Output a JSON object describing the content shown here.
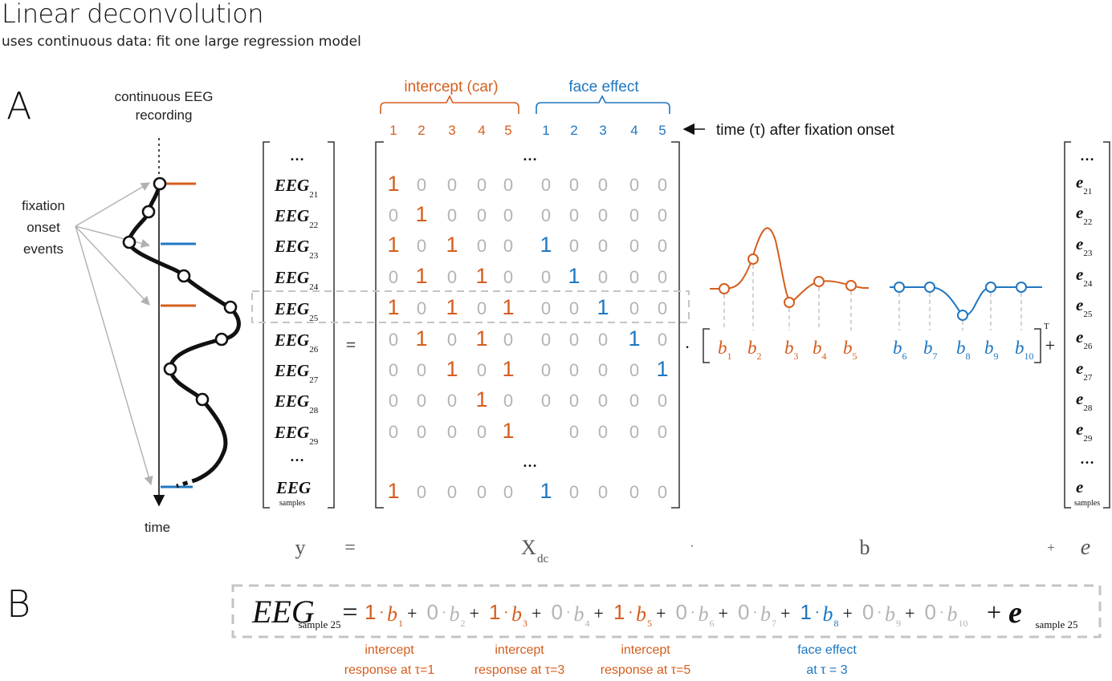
{
  "title": "Linear deconvolution",
  "subtitle": "uses continuous data: fit one large regression model",
  "colors": {
    "intercept": "#d55e1e",
    "face": "#1f77c0",
    "zero": "#b4b4b4",
    "text": "#111111",
    "arrow": "#b0b0b0",
    "dash": "#c4c4c4"
  },
  "panelA": {
    "label": "A",
    "eeg_title_line1": "continuous EEG",
    "eeg_title_line2": "recording",
    "events_line1": "fixation",
    "events_line2": "onset",
    "events_line3": "events",
    "time_label": "time",
    "group_intercept": "intercept (car)",
    "group_face": "face effect",
    "time_arrow_label": "time (τ) after fixation onset",
    "col_numbers": [
      "1",
      "2",
      "3",
      "4",
      "5"
    ],
    "ellipsis": "…",
    "eeg_rows": [
      {
        "sym": "EEG",
        "sub": "21"
      },
      {
        "sym": "EEG",
        "sub": "22"
      },
      {
        "sym": "EEG",
        "sub": "23"
      },
      {
        "sym": "EEG",
        "sub": "24"
      },
      {
        "sym": "EEG",
        "sub": "25"
      },
      {
        "sym": "EEG",
        "sub": "26"
      },
      {
        "sym": "EEG",
        "sub": "27"
      },
      {
        "sym": "EEG",
        "sub": "28"
      },
      {
        "sym": "EEG",
        "sub": "29"
      }
    ],
    "eeg_last": {
      "sym": "EEG",
      "sub": "samples"
    },
    "matrix_rows": [
      [
        1,
        0,
        0,
        0,
        0,
        0,
        0,
        0,
        0,
        0
      ],
      [
        0,
        1,
        0,
        0,
        0,
        0,
        0,
        0,
        0,
        0
      ],
      [
        1,
        0,
        1,
        0,
        0,
        1,
        0,
        0,
        0,
        0
      ],
      [
        0,
        1,
        0,
        1,
        0,
        0,
        1,
        0,
        0,
        0
      ],
      [
        1,
        0,
        1,
        0,
        1,
        0,
        0,
        1,
        0,
        0
      ],
      [
        0,
        1,
        0,
        1,
        0,
        0,
        0,
        0,
        1,
        0
      ],
      [
        0,
        0,
        1,
        0,
        1,
        0,
        0,
        0,
        0,
        1
      ],
      [
        0,
        0,
        0,
        1,
        0,
        0,
        0,
        0,
        0,
        0
      ],
      [
        0,
        0,
        0,
        0,
        1,
        null,
        0,
        0,
        0,
        0
      ]
    ],
    "matrix_last": [
      1,
      0,
      0,
      0,
      0,
      1,
      0,
      0,
      0,
      0
    ],
    "equals": "=",
    "dot": "·",
    "plus": "+",
    "transpose": "T",
    "b_labels": [
      {
        "sym": "b",
        "sub": "1"
      },
      {
        "sym": "b",
        "sub": "2"
      },
      {
        "sym": "b",
        "sub": "3"
      },
      {
        "sym": "b",
        "sub": "4"
      },
      {
        "sym": "b",
        "sub": "5"
      },
      {
        "sym": "b",
        "sub": "6"
      },
      {
        "sym": "b",
        "sub": "7"
      },
      {
        "sym": "b",
        "sub": "8"
      },
      {
        "sym": "b",
        "sub": "9"
      },
      {
        "sym": "b",
        "sub": "10"
      }
    ],
    "e_rows": [
      {
        "sym": "e",
        "sub": "21"
      },
      {
        "sym": "e",
        "sub": "22"
      },
      {
        "sym": "e",
        "sub": "23"
      },
      {
        "sym": "e",
        "sub": "24"
      },
      {
        "sym": "e",
        "sub": "25"
      },
      {
        "sym": "e",
        "sub": "26"
      },
      {
        "sym": "e",
        "sub": "27"
      },
      {
        "sym": "e",
        "sub": "28"
      },
      {
        "sym": "e",
        "sub": "29"
      }
    ],
    "e_last": {
      "sym": "e",
      "sub": "samples"
    },
    "bottom_y": "y",
    "bottom_eq": "=",
    "bottom_X": "X",
    "bottom_X_sub": "dc",
    "bottom_dot": "·",
    "bottom_b": "b",
    "bottom_plus": "+",
    "bottom_e": "e"
  },
  "panelB": {
    "label": "B",
    "lhs_sym": "EEG",
    "lhs_sub": "sample 25",
    "eq": "=",
    "terms": [
      {
        "coef": "1",
        "sub": "1",
        "kind": "intercept"
      },
      {
        "coef": "0",
        "sub": "2",
        "kind": "zero"
      },
      {
        "coef": "1",
        "sub": "3",
        "kind": "intercept"
      },
      {
        "coef": "0",
        "sub": "4",
        "kind": "zero"
      },
      {
        "coef": "1",
        "sub": "5",
        "kind": "intercept"
      },
      {
        "coef": "0",
        "sub": "6",
        "kind": "zero"
      },
      {
        "coef": "0",
        "sub": "7",
        "kind": "zero"
      },
      {
        "coef": "1",
        "sub": "8",
        "kind": "face"
      },
      {
        "coef": "0",
        "sub": "9",
        "kind": "zero"
      },
      {
        "coef": "0",
        "sub": "10",
        "kind": "zero"
      }
    ],
    "plus": "+",
    "dot": "·",
    "b_sym": "b",
    "rhs_sym": "e",
    "rhs_sub": "sample 25",
    "annotations": [
      {
        "line1": "intercept",
        "line2": "response at τ=1"
      },
      {
        "line1": "intercept",
        "line2": "response at τ=3"
      },
      {
        "line1": "intercept",
        "line2": "response at τ=5"
      },
      {
        "line1": "face effect",
        "line2": "at τ = 3"
      }
    ]
  }
}
